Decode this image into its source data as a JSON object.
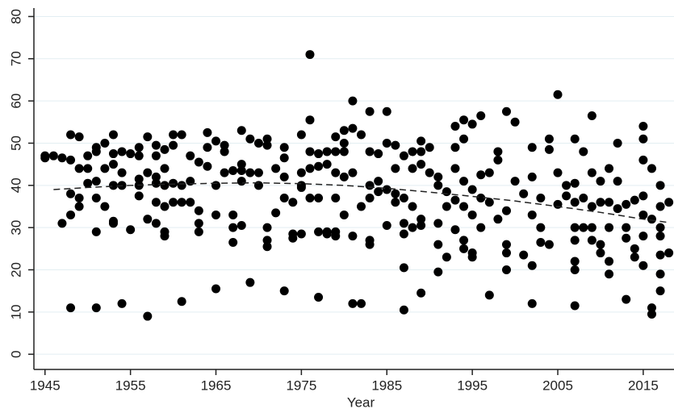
{
  "chart_data": {
    "type": "scatter",
    "x_label": "Year",
    "color": "#000000",
    "grid": true,
    "xlim": [
      1943.7,
      2018.6
    ],
    "ylim": [
      -3.6,
      82
    ],
    "xticks": [
      1945,
      1955,
      1965,
      1975,
      1985,
      1995,
      2005,
      2015
    ],
    "yticks": [
      0,
      10,
      20,
      30,
      40,
      50,
      60,
      70,
      80
    ],
    "x": [
      1945,
      1945,
      1946,
      1947,
      1947,
      1948,
      1948,
      1948,
      1948,
      1948,
      1949,
      1949,
      1949,
      1949,
      1950,
      1950,
      1950,
      1951,
      1951,
      1951,
      1951,
      1951,
      1951,
      1952,
      1952,
      1952,
      1953,
      1953,
      1953,
      1953,
      1953,
      1953,
      1954,
      1954,
      1954,
      1954,
      1955,
      1955,
      1956,
      1956,
      1956,
      1956,
      1956,
      1957,
      1957,
      1957,
      1957,
      1958,
      1958,
      1958,
      1958,
      1958,
      1958,
      1959,
      1959,
      1959,
      1959,
      1959,
      1959,
      1960,
      1960,
      1960,
      1960,
      1961,
      1961,
      1961,
      1961,
      1962,
      1962,
      1962,
      1963,
      1963,
      1963,
      1963,
      1964,
      1964,
      1964,
      1965,
      1965,
      1965,
      1965,
      1966,
      1966,
      1966,
      1967,
      1967,
      1967,
      1967,
      1968,
      1968,
      1968,
      1968,
      1968,
      1969,
      1969,
      1969,
      1970,
      1970,
      1970,
      1971,
      1971,
      1971,
      1971,
      1971,
      1972,
      1972,
      1973,
      1973,
      1973,
      1973,
      1973,
      1974,
      1974,
      1974,
      1975,
      1975,
      1975,
      1975,
      1975,
      1976,
      1976,
      1976,
      1976,
      1976,
      1977,
      1977,
      1977,
      1977,
      1977,
      1978,
      1978,
      1978,
      1978,
      1979,
      1979,
      1979,
      1979,
      1979,
      1979,
      1980,
      1980,
      1980,
      1980,
      1980,
      1981,
      1981,
      1981,
      1981,
      1981,
      1982,
      1982,
      1982,
      1983,
      1983,
      1983,
      1983,
      1983,
      1983,
      1984,
      1984,
      1984,
      1985,
      1985,
      1985,
      1985,
      1986,
      1986,
      1986,
      1986,
      1987,
      1987,
      1987,
      1987,
      1987,
      1987,
      1988,
      1988,
      1988,
      1988,
      1989,
      1989,
      1989,
      1989,
      1989,
      1989,
      1990,
      1990,
      1991,
      1991,
      1991,
      1991,
      1991,
      1992,
      1992,
      1992,
      1993,
      1993,
      1993,
      1993,
      1993,
      1994,
      1994,
      1994,
      1994,
      1994,
      1994,
      1995,
      1995,
      1995,
      1995,
      1995,
      1996,
      1996,
      1996,
      1996,
      1997,
      1997,
      1997,
      1998,
      1998,
      1998,
      1999,
      1999,
      1999,
      1999,
      1999,
      2000,
      2000,
      2001,
      2001,
      2002,
      2002,
      2002,
      2002,
      2002,
      2003,
      2003,
      2003,
      2004,
      2004,
      2004,
      2005,
      2005,
      2005,
      2006,
      2006,
      2007,
      2007,
      2007,
      2007,
      2007,
      2007,
      2007,
      2007,
      2008,
      2008,
      2008,
      2009,
      2009,
      2009,
      2009,
      2009,
      2010,
      2010,
      2010,
      2010,
      2011,
      2011,
      2011,
      2011,
      2011,
      2012,
      2012,
      2012,
      2013,
      2013,
      2013,
      2013,
      2014,
      2014,
      2014,
      2015,
      2015,
      2015,
      2015,
      2015,
      2015,
      2015,
      2016,
      2016,
      2016,
      2016,
      2017,
      2017,
      2017,
      2017,
      2017,
      2017,
      2017,
      2018,
      2018
    ],
    "values": [
      47,
      46.5,
      47,
      31,
      46.5,
      52,
      46,
      38,
      33,
      11,
      51.5,
      44,
      37,
      35,
      47,
      44,
      40.5,
      49,
      48,
      41,
      37,
      29,
      11,
      50,
      44,
      35,
      52,
      47.5,
      45,
      40,
      31.5,
      31,
      48,
      43,
      40,
      12,
      47.5,
      29.5,
      47,
      49,
      41.5,
      37.5,
      40,
      51.5,
      43,
      32,
      9,
      49.5,
      47,
      42,
      40.5,
      36,
      31,
      48.5,
      44,
      40,
      35,
      29,
      28,
      52,
      49.5,
      40.5,
      36,
      52,
      40,
      36,
      12.5,
      41,
      36,
      47,
      45.5,
      34,
      31,
      29,
      52.5,
      49,
      44.5,
      50.5,
      40,
      33,
      15.5,
      49.5,
      48,
      43,
      43.5,
      33,
      30,
      26.5,
      53,
      45,
      43.5,
      41,
      30.5,
      51,
      43,
      17,
      50,
      43,
      40,
      51,
      49.5,
      30,
      27,
      25.5,
      44,
      33.5,
      49,
      46.5,
      42,
      37,
      15,
      36,
      28.5,
      27.5,
      52,
      43,
      40,
      39.5,
      28.5,
      71,
      55.5,
      48,
      44,
      37,
      47.5,
      44.5,
      37,
      29,
      13.5,
      48,
      45,
      29,
      28.5,
      51.5,
      48,
      43,
      37,
      29,
      28,
      53,
      50,
      48,
      42,
      33,
      60,
      53.5,
      43,
      28,
      12,
      52,
      35,
      12,
      57.5,
      48,
      40,
      37,
      27,
      26,
      47.5,
      41,
      38.5,
      57.5,
      50,
      39,
      30.5,
      49.5,
      44,
      36,
      38,
      47,
      37,
      31,
      28.5,
      20.5,
      10.5,
      48,
      44,
      35,
      30,
      50.5,
      48,
      45,
      32,
      30.5,
      14.5,
      49,
      43,
      42,
      40,
      31,
      26,
      19.5,
      38.5,
      35,
      23,
      54,
      49,
      44,
      36.5,
      29.5,
      55.5,
      51,
      41,
      35,
      27,
      25,
      54.5,
      39,
      33,
      24,
      23,
      56.5,
      42.5,
      37,
      30,
      43,
      36,
      14,
      48,
      46,
      32,
      57.5,
      34,
      26,
      24,
      20,
      55,
      41,
      38,
      23.5,
      49,
      42,
      33,
      21,
      12,
      37,
      30,
      26.5,
      51,
      48.5,
      26,
      61.5,
      43,
      35.5,
      40,
      37.5,
      51,
      40.5,
      36,
      30,
      27,
      22,
      20,
      11.5,
      48,
      37,
      30,
      56.5,
      43,
      35,
      30,
      27,
      41,
      36,
      26,
      24,
      44,
      36,
      30,
      22,
      19,
      50,
      41,
      34.5,
      35.5,
      30,
      27.5,
      13,
      36.5,
      25,
      23,
      54,
      51,
      46,
      37.5,
      33,
      28,
      21,
      44,
      32,
      11,
      9.5,
      40,
      35,
      30,
      28,
      19,
      15,
      23.5,
      36,
      24
    ],
    "trend": {
      "x": [
        1946,
        1950,
        1955,
        1960,
        1965,
        1970,
        1975,
        1980,
        1985,
        1990,
        1995,
        2000,
        2005,
        2010,
        2015,
        2018
      ],
      "values": [
        39,
        39.5,
        40,
        40.3,
        40.5,
        40.6,
        40.4,
        40,
        39.3,
        38.4,
        37.4,
        36.3,
        35,
        33.6,
        32,
        31.2
      ]
    }
  }
}
